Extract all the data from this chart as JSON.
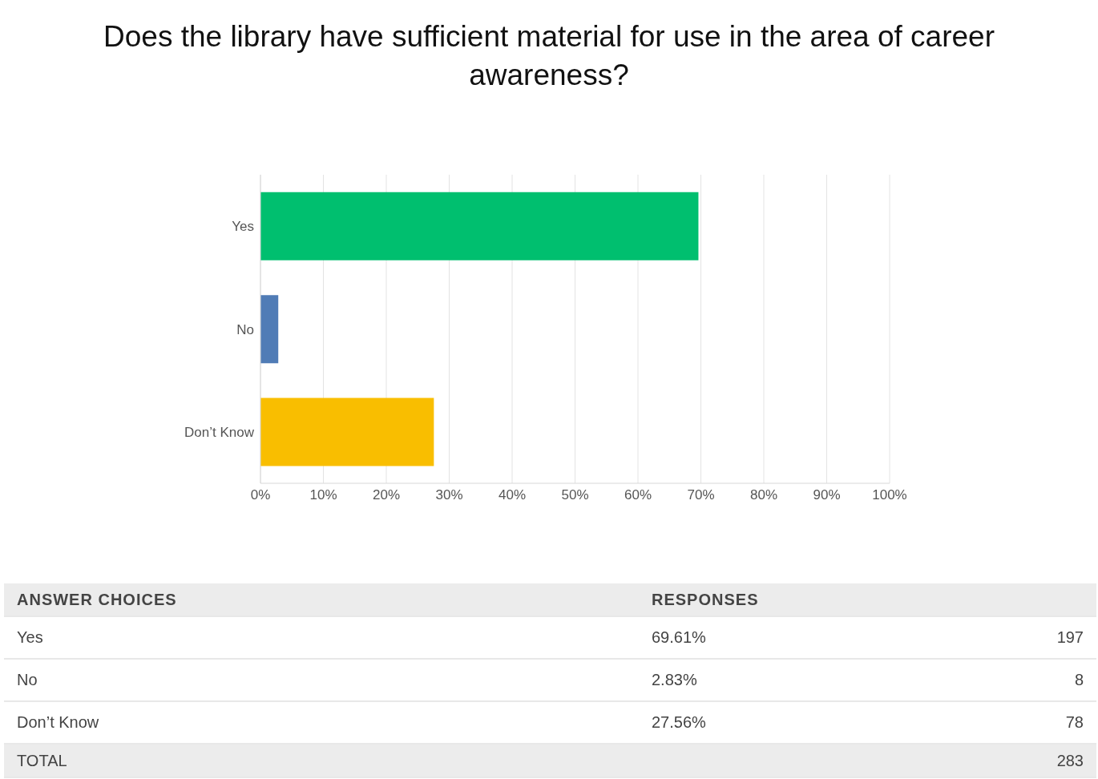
{
  "chart_data": {
    "type": "bar",
    "orientation": "horizontal",
    "title": "Does the library have sufficient material for use in the area of career awareness?",
    "categories": [
      "Yes",
      "No",
      "Don’t Know"
    ],
    "values": [
      69.61,
      2.83,
      27.56
    ],
    "colors": [
      "#00bf6f",
      "#507cb6",
      "#f9be00"
    ],
    "xlim": [
      0,
      100
    ],
    "xticks": [
      {
        "value": 0,
        "label": "0%"
      },
      {
        "value": 10,
        "label": "10%"
      },
      {
        "value": 20,
        "label": "20%"
      },
      {
        "value": 30,
        "label": "30%"
      },
      {
        "value": 40,
        "label": "40%"
      },
      {
        "value": 50,
        "label": "50%"
      },
      {
        "value": 60,
        "label": "60%"
      },
      {
        "value": 70,
        "label": "70%"
      },
      {
        "value": 80,
        "label": "80%"
      },
      {
        "value": 90,
        "label": "90%"
      },
      {
        "value": 100,
        "label": "100%"
      }
    ],
    "grid": "x",
    "legend": false,
    "annotations": [
      "ANSWER CHOICES",
      "RESPONSES",
      "69.61%",
      "197",
      "2.83%",
      "8",
      "27.56%",
      "78",
      "TOTAL",
      "283"
    ]
  }
}
